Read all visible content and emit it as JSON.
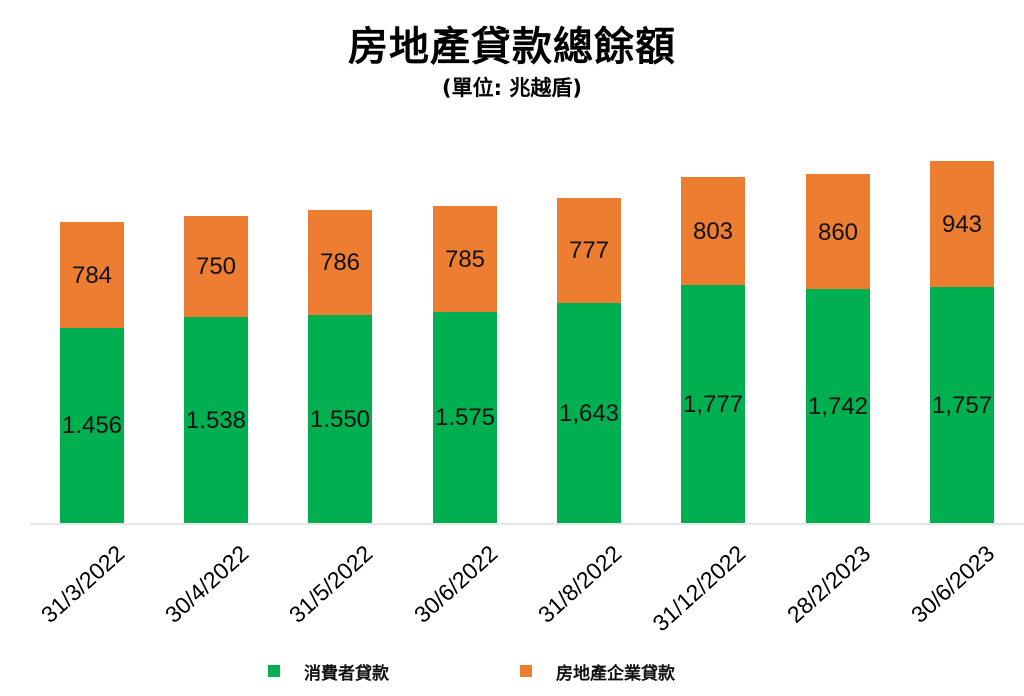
{
  "title": "房地產貸款總餘額",
  "subtitle": "(單位: 兆越盾)",
  "colors": {
    "consumer": "#00b050",
    "enterprise": "#ed7d31",
    "axis": "#e6e6e6"
  },
  "legend": [
    {
      "label": "消費者貸款",
      "color": "#00b050"
    },
    {
      "label": "房地產企業貸款",
      "color": "#ed7d31"
    }
  ],
  "bars": [
    {
      "date": "31/3/2022",
      "consumer_label": "1.456",
      "enterprise_label": "784"
    },
    {
      "date": "30/4/2022",
      "consumer_label": "1.538",
      "enterprise_label": "750"
    },
    {
      "date": "31/5/2022",
      "consumer_label": "1.550",
      "enterprise_label": "786"
    },
    {
      "date": "30/6/2022",
      "consumer_label": "1.575",
      "enterprise_label": "785"
    },
    {
      "date": "31/8/2022",
      "consumer_label": "1,643",
      "enterprise_label": "777"
    },
    {
      "date": "31/12/2022",
      "consumer_label": "1,777",
      "enterprise_label": "803"
    },
    {
      "date": "28/2/2023",
      "consumer_label": "1,742",
      "enterprise_label": "860"
    },
    {
      "date": "30/6/2023",
      "consumer_label": "1,757",
      "enterprise_label": "943"
    }
  ],
  "chart_data": {
    "type": "bar",
    "stacked": true,
    "title": "房地產貸款總餘額",
    "subtitle": "(單位: 兆越盾)",
    "xlabel": "",
    "ylabel": "",
    "categories": [
      "31/3/2022",
      "30/4/2022",
      "31/5/2022",
      "30/6/2022",
      "31/8/2022",
      "31/12/2022",
      "28/2/2023",
      "30/6/2023"
    ],
    "series": [
      {
        "name": "消費者貸款",
        "color": "#00b050",
        "values": [
          1456,
          1538,
          1550,
          1575,
          1643,
          1777,
          1742,
          1757
        ]
      },
      {
        "name": "房地產企業貸款",
        "color": "#ed7d31",
        "values": [
          784,
          750,
          786,
          785,
          777,
          803,
          860,
          943
        ]
      }
    ],
    "grid": false,
    "y_axis_visible": false,
    "legend_position": "bottom",
    "data_labels": true
  }
}
